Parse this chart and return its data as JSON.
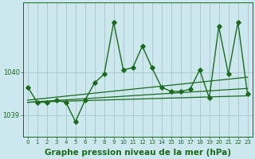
{
  "background_color": "#cce8ee",
  "grid_color": "#aacccc",
  "line_color": "#1a6b1a",
  "title": "Graphe pression niveau de la mer (hPa)",
  "title_fontsize": 7.5,
  "xlim": [
    -0.5,
    23.5
  ],
  "ylim": [
    1038.5,
    1041.6
  ],
  "yticks": [
    1039,
    1040
  ],
  "xticks": [
    0,
    1,
    2,
    3,
    4,
    5,
    6,
    7,
    8,
    9,
    10,
    11,
    12,
    13,
    14,
    15,
    16,
    17,
    18,
    19,
    20,
    21,
    22,
    23
  ],
  "main_x": [
    0,
    1,
    2,
    3,
    4,
    5,
    6,
    7,
    8,
    9,
    10,
    11,
    12,
    13,
    14,
    15,
    16,
    17,
    18,
    19,
    20,
    21,
    22,
    23
  ],
  "main_y": [
    1039.65,
    1039.3,
    1039.3,
    1039.35,
    1039.3,
    1038.85,
    1039.35,
    1039.75,
    1039.95,
    1041.15,
    1040.05,
    1040.1,
    1040.6,
    1040.1,
    1039.65,
    1039.55,
    1039.55,
    1039.6,
    1040.05,
    1039.4,
    1041.05,
    1039.95,
    1041.15,
    1039.5
  ],
  "trend_lines": [
    {
      "x": [
        0,
        23
      ],
      "y": [
        1039.3,
        1039.45
      ]
    },
    {
      "x": [
        0,
        23
      ],
      "y": [
        1039.3,
        1039.62
      ]
    },
    {
      "x": [
        0,
        23
      ],
      "y": [
        1039.35,
        1039.88
      ]
    }
  ],
  "markersize": 2.8,
  "linewidth": 1.0,
  "trend_linewidth": 0.9
}
